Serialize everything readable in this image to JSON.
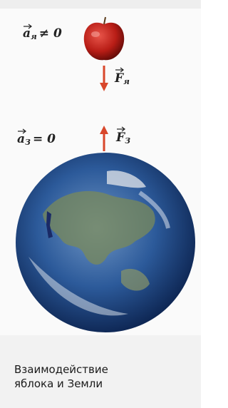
{
  "apple_acceleration": {
    "symbol": "a",
    "subscript": "я",
    "relation": "≠ 0"
  },
  "apple_force": {
    "symbol": "F",
    "subscript": "я"
  },
  "earth_acceleration": {
    "symbol": "a",
    "subscript": "З",
    "relation": "= 0"
  },
  "earth_force": {
    "symbol": "F",
    "subscript": "З"
  },
  "caption": [
    "Взаимодействие",
    "яблока и Земли"
  ]
}
